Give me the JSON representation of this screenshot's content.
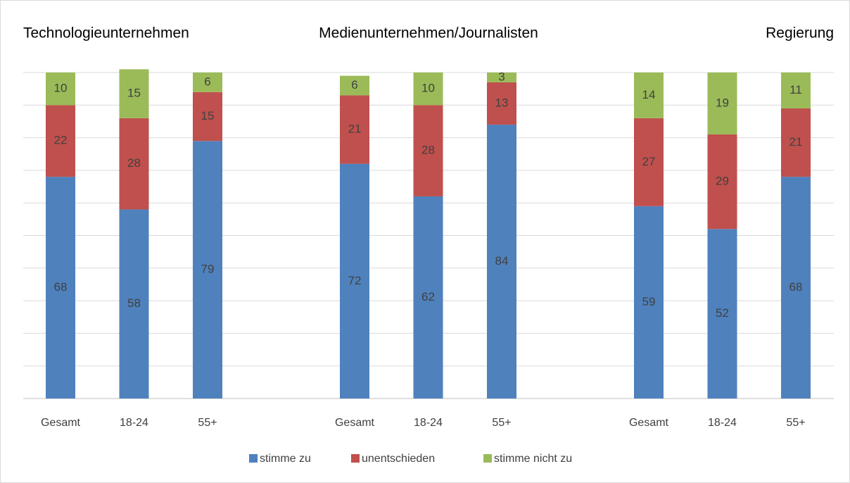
{
  "chart_data": {
    "type": "stacked_bar",
    "groups": [
      "Technologieunternehmen",
      "Medienunternehmen/Journalisten",
      "Regierung"
    ],
    "categories": [
      "Gesamt",
      "18-24",
      "55+",
      "Gesamt",
      "18-24",
      "55+",
      "Gesamt",
      "18-24",
      "55+"
    ],
    "series": [
      {
        "name": "stimme zu",
        "color": "#4f81bd",
        "values": [
          68,
          58,
          79,
          72,
          62,
          84,
          59,
          52,
          68
        ]
      },
      {
        "name": "unentschieden",
        "color": "#c0504d",
        "values": [
          22,
          28,
          15,
          21,
          28,
          13,
          27,
          29,
          21
        ]
      },
      {
        "name": "stimme nicht zu",
        "color": "#9bbb59",
        "values": [
          10,
          15,
          6,
          6,
          10,
          3,
          14,
          19,
          11
        ]
      }
    ],
    "ylim": [
      0,
      100
    ],
    "yticks": [
      0,
      10,
      20,
      30,
      40,
      50,
      60,
      70,
      80,
      90,
      100
    ],
    "grid": true,
    "legend": "bottom"
  }
}
